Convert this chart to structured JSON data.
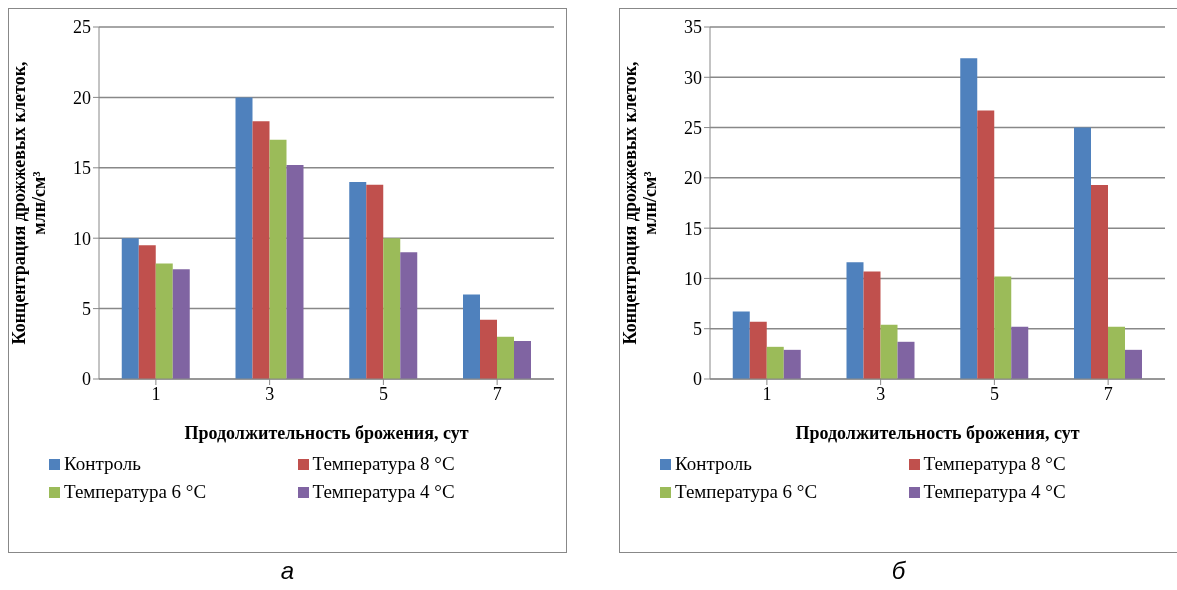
{
  "chart_data": [
    {
      "type": "bar",
      "ylabel": "Концентрация  дрожжевых клеток,\nмлн/см³",
      "xlabel": "Продолжительность брожения, сут",
      "categories": [
        "1",
        "3",
        "5",
        "7"
      ],
      "series": [
        {
          "name": "Контроль",
          "color": "#4f81bd",
          "values": [
            10,
            20,
            14,
            6
          ]
        },
        {
          "name": "Температура 8 °C",
          "color": "#c0504d",
          "values": [
            9.5,
            18.3,
            13.8,
            4.2
          ]
        },
        {
          "name": "Температура 6 °C",
          "color": "#9bbb59",
          "values": [
            8.2,
            17,
            10,
            3
          ]
        },
        {
          "name": "Температура 4 °C",
          "color": "#8064a2",
          "values": [
            7.8,
            15.2,
            9,
            2.7
          ]
        }
      ],
      "ylim": [
        0,
        25
      ],
      "yticks": [
        0,
        5,
        10,
        15,
        20,
        25
      ],
      "grid": "y",
      "legend": "bottom",
      "annotations": [
        "а"
      ]
    },
    {
      "type": "bar",
      "ylabel": "Концентрация  дрожжевых клеток,\nмлн/см³",
      "xlabel": "Продолжительность брожения, сут",
      "categories": [
        "1",
        "3",
        "5",
        "7"
      ],
      "series": [
        {
          "name": "Контроль",
          "color": "#4f81bd",
          "values": [
            6.7,
            11.6,
            31.9,
            25
          ]
        },
        {
          "name": "Температура 8 °C",
          "color": "#c0504d",
          "values": [
            5.7,
            10.7,
            26.7,
            19.3
          ]
        },
        {
          "name": "Температура 6 °C",
          "color": "#9bbb59",
          "values": [
            3.2,
            5.4,
            10.2,
            5.2
          ]
        },
        {
          "name": "Температура 4 °C",
          "color": "#8064a2",
          "values": [
            2.9,
            3.7,
            5.2,
            2.9
          ]
        }
      ],
      "ylim": [
        0,
        35
      ],
      "yticks": [
        0,
        5,
        10,
        15,
        20,
        25,
        30,
        35
      ],
      "grid": "y",
      "legend": "bottom",
      "annotations": [
        "б"
      ]
    }
  ]
}
